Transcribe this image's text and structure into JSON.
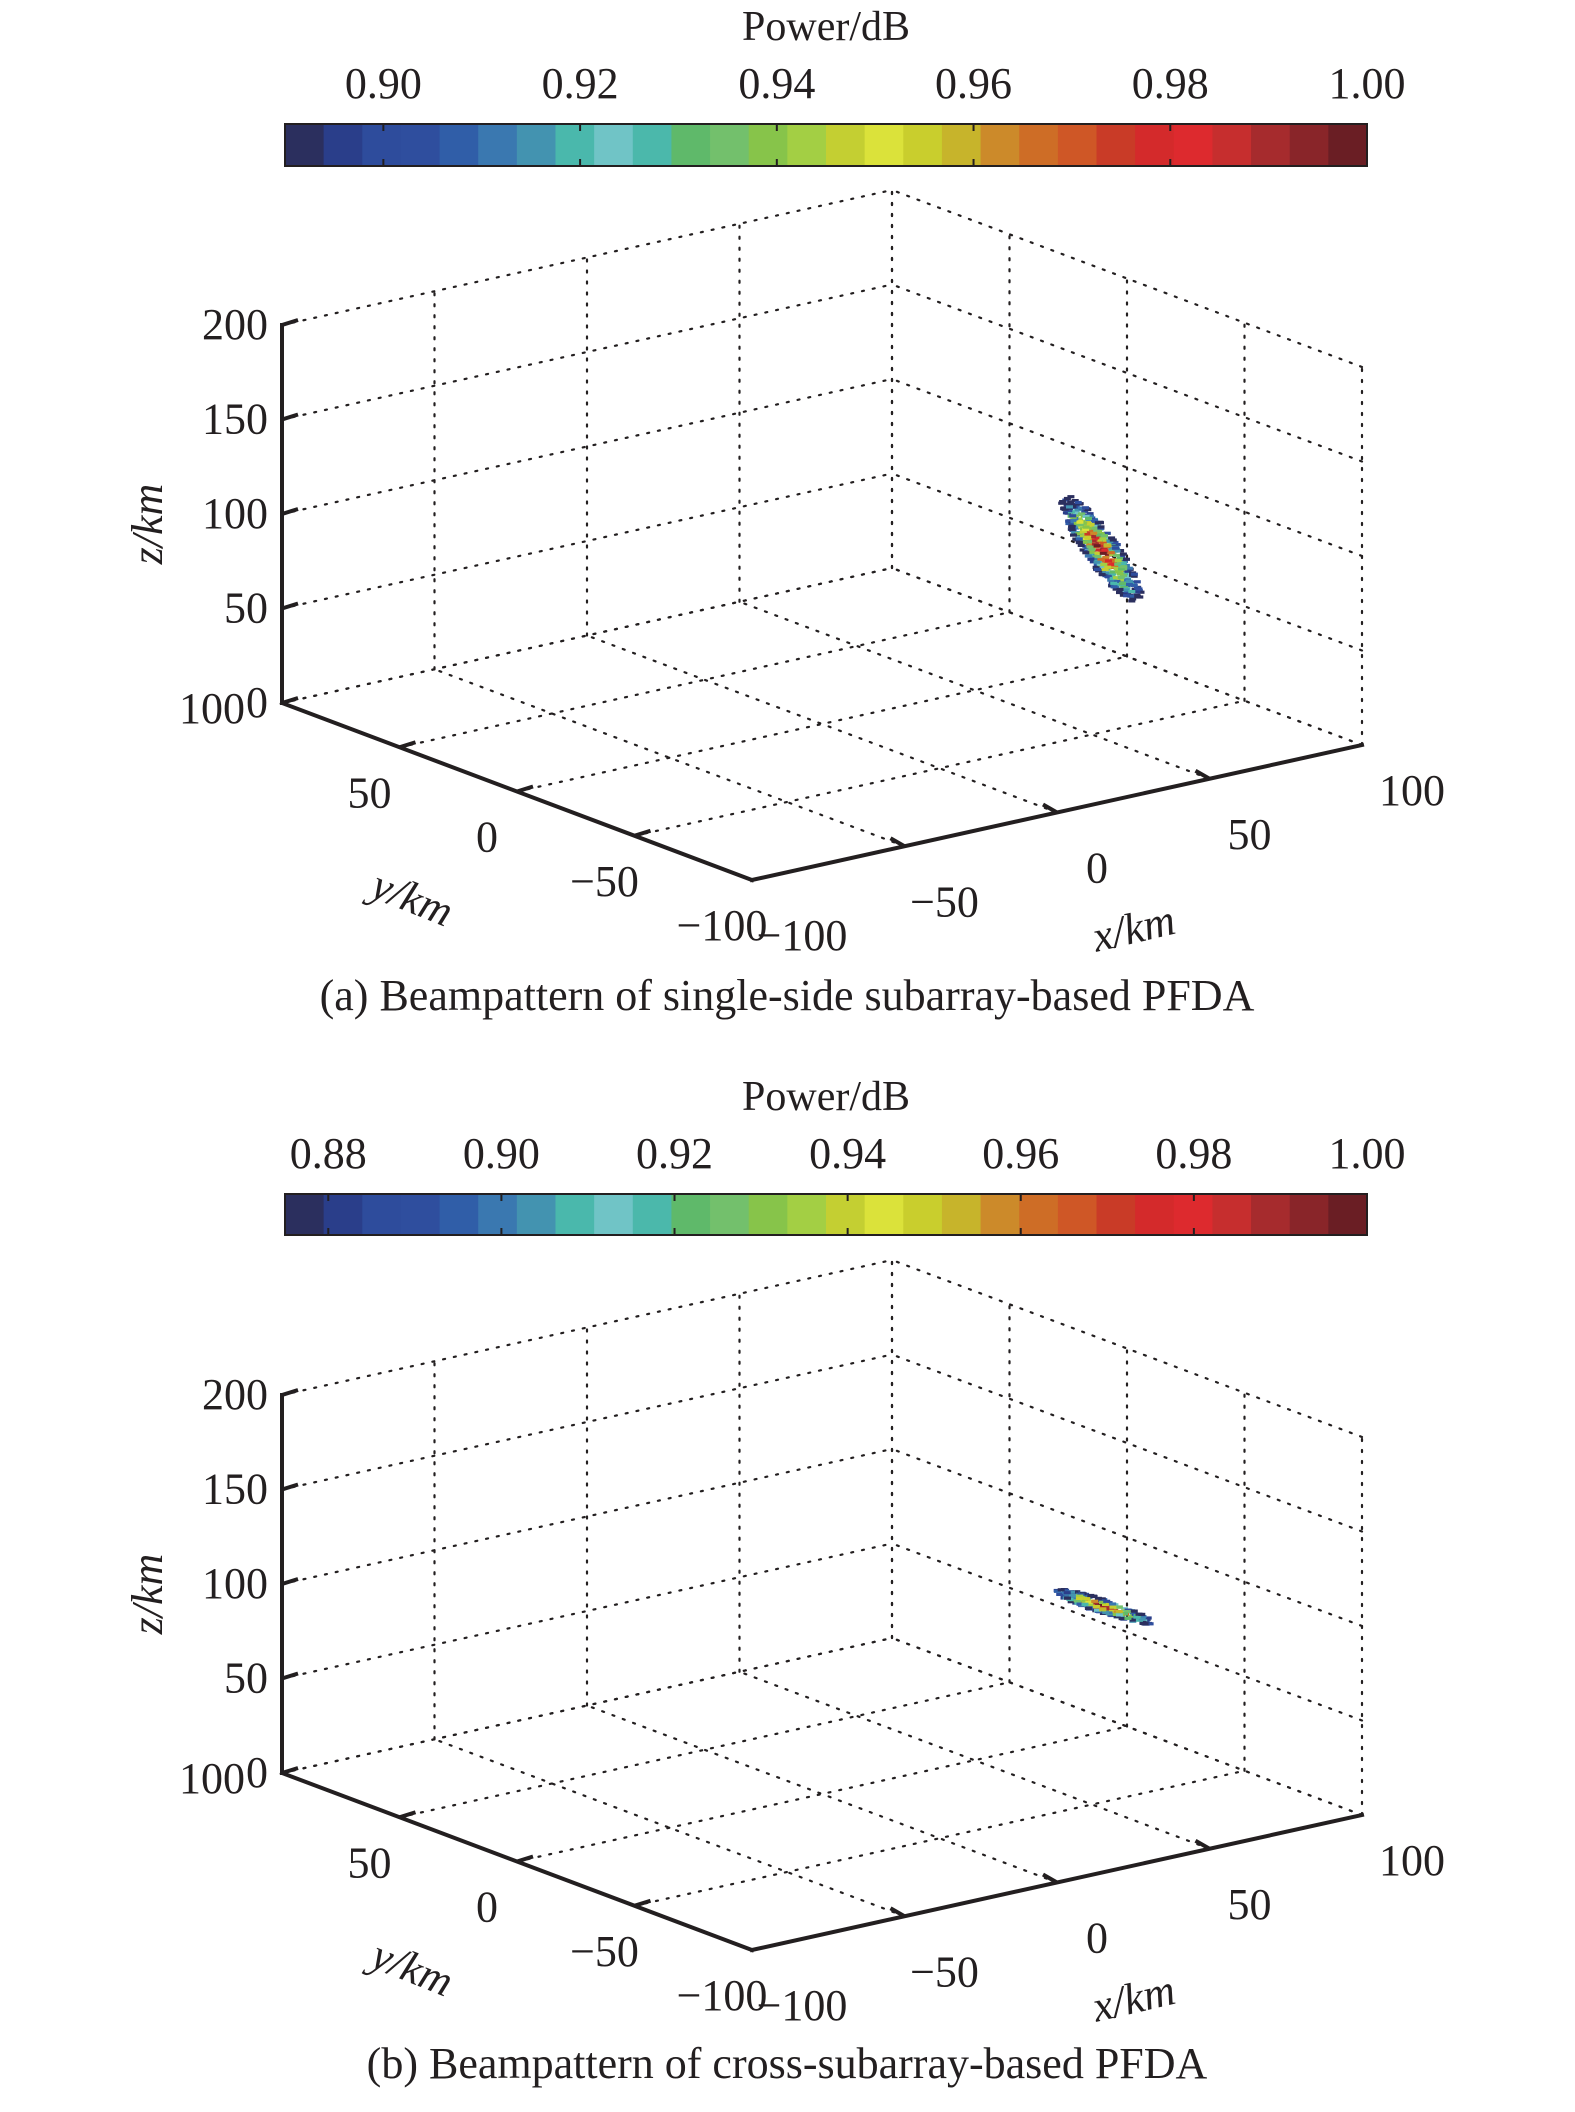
{
  "chart_data": [
    {
      "type": "scatter3d",
      "panel": "a",
      "caption": "(a) Beampattern of single-side subarray-based PFDA",
      "colorbar": {
        "title": "Power/dB",
        "range": [
          0.89,
          1.0
        ],
        "ticks": [
          0.9,
          0.92,
          0.94,
          0.96,
          0.98,
          1.0
        ],
        "tick_labels": [
          "0.90",
          "0.92",
          "0.94",
          "0.96",
          "0.98",
          "1.00"
        ],
        "placement": "top"
      },
      "xlabel": "x/km",
      "ylabel": "y/km",
      "zlabel": "z/km",
      "xlim": [
        -100,
        100
      ],
      "ylim": [
        -100,
        100
      ],
      "zlim": [
        0,
        200
      ],
      "xticks": [
        -100,
        -50,
        0,
        50,
        100
      ],
      "yticks": [
        -100,
        -50,
        0,
        50,
        100
      ],
      "zticks": [
        0,
        50,
        100,
        150,
        200
      ],
      "xtick_labels": [
        "−100",
        "−50",
        "0",
        "50",
        "100"
      ],
      "ytick_labels": [
        "−100",
        "−50",
        "0",
        "50",
        "100"
      ],
      "ztick_labels": [
        "0",
        "50",
        "100",
        "150",
        "200"
      ],
      "grid": true,
      "beam_cluster": {
        "center": [
          30,
          30,
          100
        ],
        "peak_power": 1.0,
        "min_power": 0.89,
        "shape": "elongated diagonal blob",
        "extent_z": [
          65,
          110
        ]
      }
    },
    {
      "type": "scatter3d",
      "panel": "b",
      "caption": "(b) Beampattern of cross-subarray-based PFDA",
      "colorbar": {
        "title": "Power/dB",
        "range": [
          0.875,
          1.0
        ],
        "ticks": [
          0.88,
          0.9,
          0.92,
          0.94,
          0.96,
          0.98,
          1.0
        ],
        "tick_labels": [
          "0.88",
          "0.90",
          "0.92",
          "0.94",
          "0.96",
          "0.98",
          "1.00"
        ],
        "placement": "top"
      },
      "xlabel": "x/km",
      "ylabel": "y/km",
      "zlabel": "z/km",
      "xlim": [
        -100,
        100
      ],
      "ylim": [
        -100,
        100
      ],
      "zlim": [
        0,
        200
      ],
      "xticks": [
        -100,
        -50,
        0,
        50,
        100
      ],
      "yticks": [
        -100,
        -50,
        0,
        50,
        100
      ],
      "zticks": [
        0,
        50,
        100,
        150,
        200
      ],
      "xtick_labels": [
        "−100",
        "−50",
        "0",
        "50",
        "100"
      ],
      "ytick_labels": [
        "−100",
        "−50",
        "0",
        "50",
        "100"
      ],
      "ztick_labels": [
        "0",
        "50",
        "100",
        "150",
        "200"
      ],
      "grid": true,
      "beam_cluster": {
        "center": [
          30,
          30,
          100
        ],
        "peak_power": 1.0,
        "min_power": 0.875,
        "shape": "narrow horizontal streak",
        "extent_z": [
          92,
          106
        ]
      }
    }
  ],
  "colormap": [
    "#2b2f5e",
    "#2a3e8a",
    "#2e4c9c",
    "#2f4e9e",
    "#305ea8",
    "#3a78b0",
    "#4393b0",
    "#4ab8ac",
    "#70c4c6",
    "#4bb8ab",
    "#5fb96a",
    "#73c06c",
    "#87c44a",
    "#a3cf44",
    "#c4cf32",
    "#dbe23a",
    "#c9ce2d",
    "#c7b42b",
    "#cc8a2a",
    "#ce6d26",
    "#cf5726",
    "#c93b27",
    "#d42a2b",
    "#dd2a2e",
    "#c62e2e",
    "#a62b2d",
    "#892529",
    "#6a1e24"
  ]
}
